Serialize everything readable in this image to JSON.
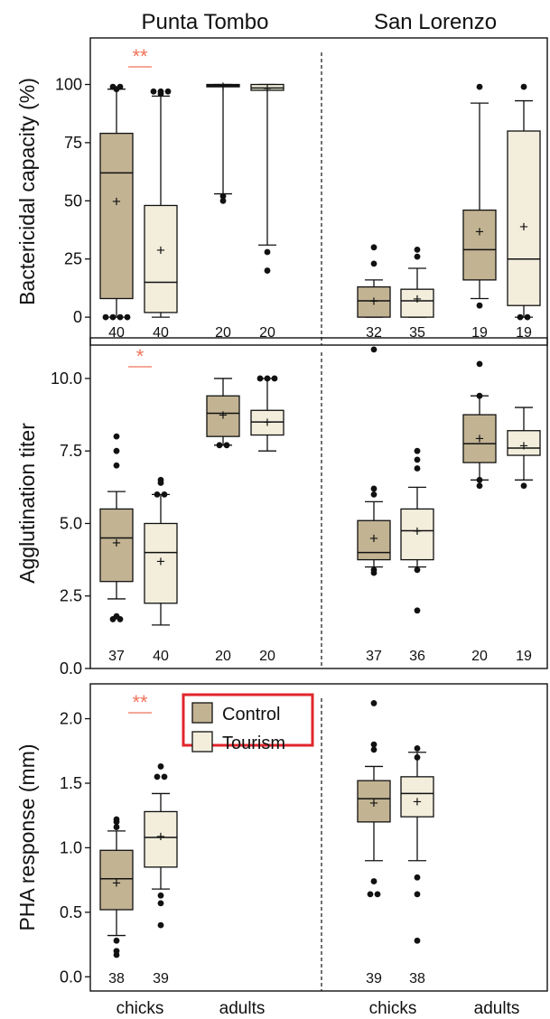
{
  "chart_data": {
    "type": "boxplot",
    "sites": [
      "Punta Tombo",
      "San Lorenzo"
    ],
    "x_tick_labels": [
      "chicks",
      "adults",
      "chicks",
      "adults"
    ],
    "legend": {
      "placement": "inside panel 3, center-top, red outlined box",
      "entries": [
        {
          "label": "Control",
          "color": "#c2b393"
        },
        {
          "label": "Tourism",
          "color": "#f3eedc"
        }
      ]
    },
    "colors": {
      "control": "#c2b393",
      "tourism": "#f3eedc",
      "significance": "#f0735a",
      "legend_border": "#e0252b"
    },
    "panels": [
      {
        "ylabel": "Bactericidal capacity (%)",
        "ylim": [
          -12,
          120
        ],
        "yticks": [
          0,
          25,
          50,
          75,
          100
        ],
        "ytick_labels": [
          "0",
          "25",
          "50",
          "75",
          "100"
        ],
        "significance": [
          {
            "label": "**",
            "group": "Punta Tombo chicks"
          }
        ],
        "boxes": [
          {
            "site": "Punta Tombo",
            "age": "chicks",
            "treatment": "Control",
            "n": "40",
            "q1": 8,
            "median": 62,
            "q3": 79,
            "whisker_low": 0,
            "whisker_high": 98,
            "mean": 50,
            "outliers": [
              0,
              0,
              0,
              0,
              99,
              99,
              98
            ]
          },
          {
            "site": "Punta Tombo",
            "age": "chicks",
            "treatment": "Tourism",
            "n": "40",
            "q1": 2,
            "median": 15,
            "q3": 48,
            "whisker_low": 0,
            "whisker_high": 95,
            "mean": 29,
            "outliers": [
              97,
              97,
              97,
              96
            ]
          },
          {
            "site": "Punta Tombo",
            "age": "adults",
            "treatment": "Control",
            "n": "20",
            "q1": 99,
            "median": 99.5,
            "q3": 100,
            "whisker_low": 53,
            "whisker_high": 100,
            "mean": 99.5,
            "outliers": [
              50,
              52
            ]
          },
          {
            "site": "Punta Tombo",
            "age": "adults",
            "treatment": "Tourism",
            "n": "20",
            "q1": 97.5,
            "median": 98.5,
            "q3": 100,
            "whisker_low": 31,
            "whisker_high": 100,
            "mean": 98.5,
            "outliers": [
              28,
              20
            ]
          },
          {
            "site": "San Lorenzo",
            "age": "chicks",
            "treatment": "Control",
            "n": "32",
            "q1": 0,
            "median": 7,
            "q3": 13,
            "whisker_low": 0,
            "whisker_high": 16,
            "mean": 7,
            "outliers": [
              30,
              23
            ]
          },
          {
            "site": "San Lorenzo",
            "age": "chicks",
            "treatment": "Tourism",
            "n": "35",
            "q1": 0,
            "median": 7,
            "q3": 12,
            "whisker_low": 0,
            "whisker_high": 21,
            "mean": 8,
            "outliers": [
              29,
              26
            ]
          },
          {
            "site": "San Lorenzo",
            "age": "adults",
            "treatment": "Control",
            "n": "19",
            "q1": 16,
            "median": 29,
            "q3": 46,
            "whisker_low": 8,
            "whisker_high": 92,
            "mean": 37,
            "outliers": [
              99,
              5
            ]
          },
          {
            "site": "San Lorenzo",
            "age": "adults",
            "treatment": "Tourism",
            "n": "19",
            "q1": 5,
            "median": 25,
            "q3": 80,
            "whisker_low": 0,
            "whisker_high": 93,
            "mean": 39,
            "outliers": [
              99,
              0,
              0
            ]
          }
        ]
      },
      {
        "ylabel": "Agglutination titer",
        "ylim": [
          0,
          11.4
        ],
        "yticks": [
          0,
          2.5,
          5,
          7.5,
          10
        ],
        "ytick_labels": [
          "0.0",
          "2.5",
          "5.0",
          "7.5",
          "10.0"
        ],
        "significance": [
          {
            "label": "*",
            "group": "Punta Tombo chicks"
          }
        ],
        "boxes": [
          {
            "site": "Punta Tombo",
            "age": "chicks",
            "treatment": "Control",
            "n": "37",
            "q1": 3.0,
            "median": 4.5,
            "q3": 5.5,
            "whisker_low": 2.4,
            "whisker_high": 6.1,
            "mean": 4.35,
            "outliers": [
              8.0,
              7.5,
              7.0,
              1.8,
              1.7,
              1.7
            ]
          },
          {
            "site": "Punta Tombo",
            "age": "chicks",
            "treatment": "Tourism",
            "n": "40",
            "q1": 2.25,
            "median": 4.0,
            "q3": 5.0,
            "whisker_low": 1.5,
            "whisker_high": 6.0,
            "mean": 3.7,
            "outliers": [
              6.5,
              6.4,
              6.0,
              6.0
            ]
          },
          {
            "site": "Punta Tombo",
            "age": "adults",
            "treatment": "Control",
            "n": "20",
            "q1": 8.0,
            "median": 8.8,
            "q3": 9.4,
            "whisker_low": 7.7,
            "whisker_high": 10.0,
            "mean": 8.75,
            "outliers": [
              7.7,
              7.7
            ]
          },
          {
            "site": "Punta Tombo",
            "age": "adults",
            "treatment": "Tourism",
            "n": "20",
            "q1": 8.05,
            "median": 8.5,
            "q3": 8.9,
            "whisker_low": 7.5,
            "whisker_high": 10.0,
            "mean": 8.5,
            "outliers": [
              10.0,
              10.0,
              10.0
            ]
          },
          {
            "site": "San Lorenzo",
            "age": "chicks",
            "treatment": "Control",
            "n": "37",
            "q1": 3.75,
            "median": 4.0,
            "q3": 5.1,
            "whisker_low": 3.5,
            "whisker_high": 5.75,
            "mean": 4.5,
            "outliers": [
              11.0,
              6.2,
              6.0,
              3.3,
              3.4
            ]
          },
          {
            "site": "San Lorenzo",
            "age": "chicks",
            "treatment": "Tourism",
            "n": "36",
            "q1": 3.75,
            "median": 4.75,
            "q3": 5.5,
            "whisker_low": 3.5,
            "whisker_high": 6.25,
            "mean": 4.75,
            "outliers": [
              7.5,
              7.2,
              6.9,
              3.4,
              2.0
            ]
          },
          {
            "site": "San Lorenzo",
            "age": "adults",
            "treatment": "Control",
            "n": "20",
            "q1": 7.1,
            "median": 7.75,
            "q3": 8.75,
            "whisker_low": 6.5,
            "whisker_high": 9.4,
            "mean": 7.95,
            "outliers": [
              10.5,
              9.4,
              6.5,
              6.3
            ]
          },
          {
            "site": "San Lorenzo",
            "age": "adults",
            "treatment": "Tourism",
            "n": "19",
            "q1": 7.35,
            "median": 7.6,
            "q3": 8.2,
            "whisker_low": 6.5,
            "whisker_high": 9.0,
            "mean": 7.7,
            "outliers": [
              6.3
            ]
          }
        ]
      },
      {
        "ylabel": "PHA response (mm)",
        "ylim": [
          -0.11,
          2.27
        ],
        "yticks": [
          0,
          0.5,
          1.0,
          1.5,
          2.0
        ],
        "ytick_labels": [
          "0.0",
          "0.5",
          "1.0",
          "1.5",
          "2.0"
        ],
        "significance": [
          {
            "label": "**",
            "group": "Punta Tombo chicks"
          }
        ],
        "boxes": [
          {
            "site": "Punta Tombo",
            "age": "chicks",
            "treatment": "Control",
            "n": "38",
            "q1": 0.52,
            "median": 0.76,
            "q3": 0.98,
            "whisker_low": 0.32,
            "whisker_high": 1.13,
            "mean": 0.73,
            "outliers": [
              1.22,
              1.2,
              1.16,
              0.28,
              0.2,
              0.17
            ]
          },
          {
            "site": "Punta Tombo",
            "age": "chicks",
            "treatment": "Tourism",
            "n": "39",
            "q1": 0.85,
            "median": 1.08,
            "q3": 1.28,
            "whisker_low": 0.68,
            "whisker_high": 1.42,
            "mean": 1.09,
            "outliers": [
              1.63,
              1.55,
              1.55,
              0.63,
              0.57,
              0.4
            ]
          },
          {
            "site": "San Lorenzo",
            "age": "chicks",
            "treatment": "Control",
            "n": "39",
            "q1": 1.2,
            "median": 1.38,
            "q3": 1.52,
            "whisker_low": 0.9,
            "whisker_high": 1.63,
            "mean": 1.35,
            "outliers": [
              2.12,
              1.8,
              1.76,
              0.74,
              0.64,
              0.64
            ]
          },
          {
            "site": "San Lorenzo",
            "age": "chicks",
            "treatment": "Tourism",
            "n": "38",
            "q1": 1.24,
            "median": 1.42,
            "q3": 1.55,
            "whisker_low": 0.9,
            "whisker_high": 1.74,
            "mean": 1.36,
            "outliers": [
              1.77,
              1.7,
              0.77,
              0.64,
              0.28
            ]
          }
        ]
      }
    ]
  }
}
